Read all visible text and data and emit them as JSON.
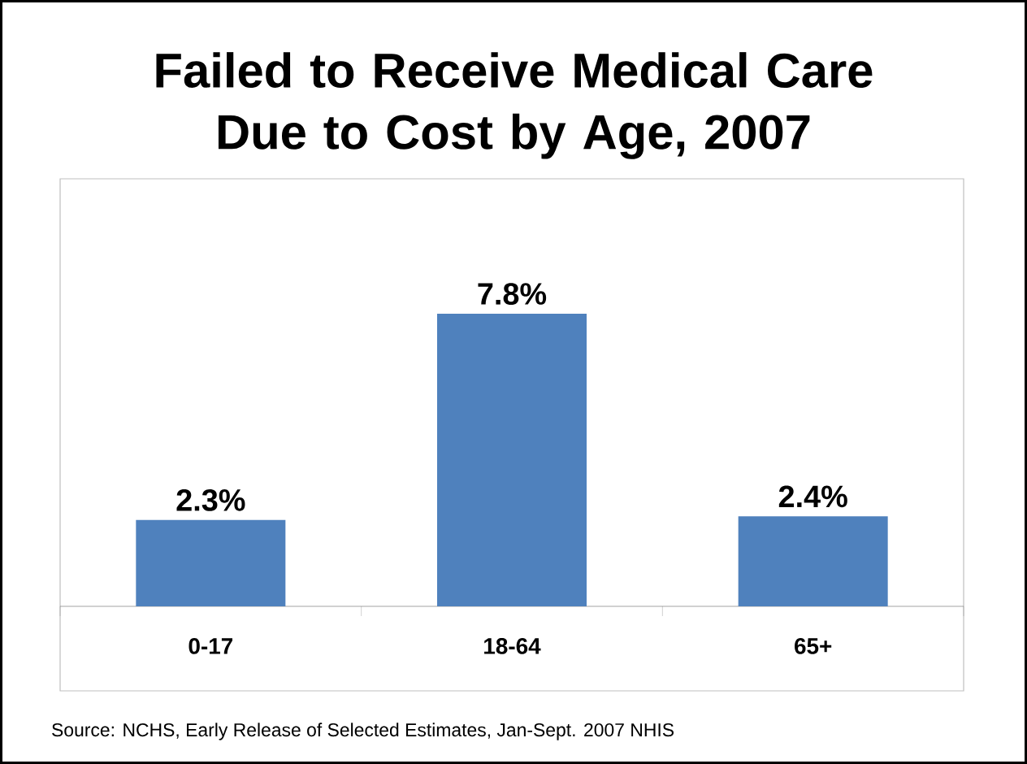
{
  "chart_data": {
    "type": "bar",
    "title": "Failed to Receive Medical Care Due to Cost by Age, 2007",
    "categories": [
      "0-17",
      "18-64",
      "65+"
    ],
    "values": [
      2.3,
      7.8,
      2.4
    ],
    "value_labels": [
      "2.3%",
      "7.8%",
      "2.4%"
    ],
    "color": "#4f81bd",
    "annotations": [
      "Source: NCHS, Early Release of Selected Estimates, Jan-Sept. 2007 NHIS"
    ]
  }
}
